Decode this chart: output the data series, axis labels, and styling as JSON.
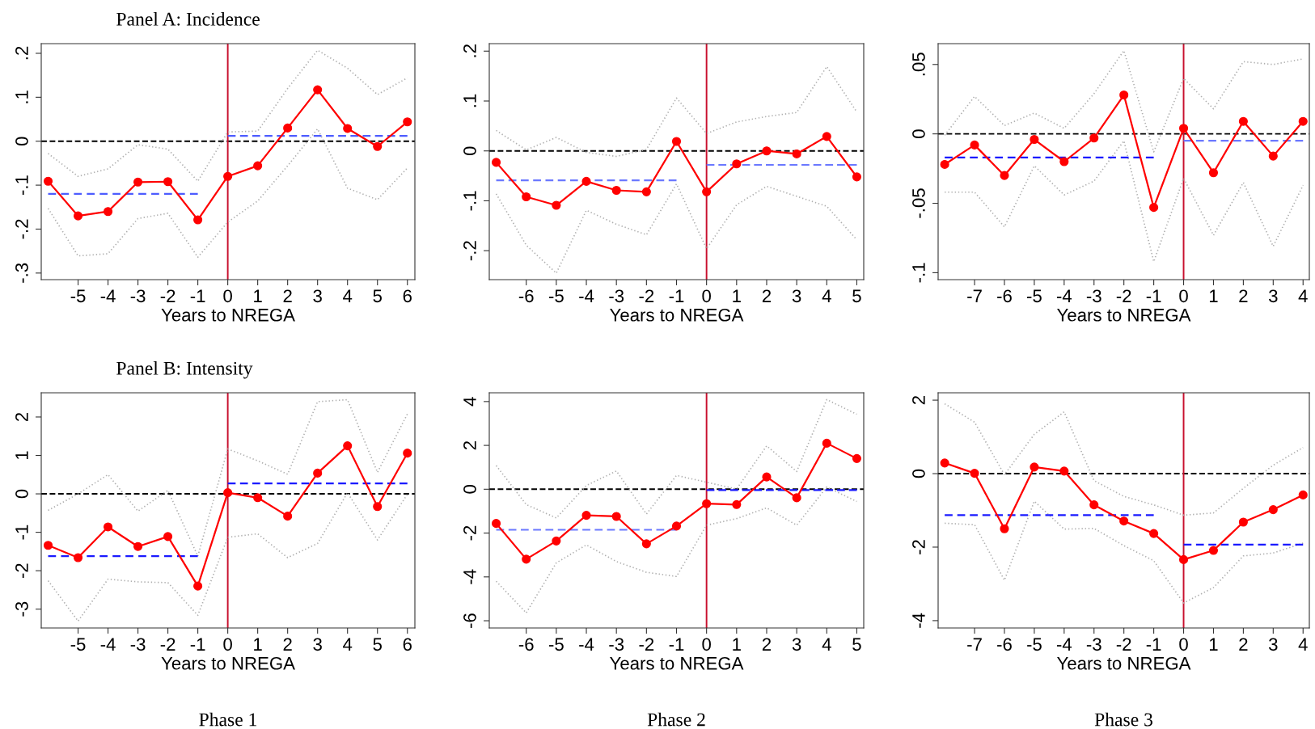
{
  "chart_data": [
    {
      "type": "line",
      "title": "Panel A: Incidence",
      "xlabel": "Years to NREGA",
      "x": [
        -6,
        -5,
        -4,
        -3,
        -2,
        -1,
        0,
        1,
        2,
        3,
        4,
        5,
        6
      ],
      "xlim": [
        -6.23,
        6.25
      ],
      "xticks": [
        -5,
        -4,
        -3,
        -2,
        -1,
        0,
        1,
        2,
        3,
        4,
        5,
        6
      ],
      "ylim": [
        -0.315,
        0.222
      ],
      "yticks": [
        {
          "value": -0.3,
          "label": "-.3"
        },
        {
          "value": -0.2,
          "label": "-.2"
        },
        {
          "value": -0.1,
          "label": "-.1"
        },
        {
          "value": 0,
          "label": "0"
        },
        {
          "value": 0.1,
          "label": ".1"
        },
        {
          "value": 0.2,
          "label": ".2"
        }
      ],
      "grid": false,
      "series": [
        {
          "color": "#b0b0b0",
          "line_style": "dotted",
          "marker": "none",
          "values": [
            -0.028,
            -0.08,
            -0.063,
            -0.008,
            -0.018,
            -0.091,
            0.021,
            0.023,
            0.12,
            0.207,
            0.166,
            0.106,
            0.144
          ]
        },
        {
          "color": "#b0b0b0",
          "line_style": "dotted",
          "marker": "none",
          "values": [
            -0.153,
            -0.261,
            -0.256,
            -0.176,
            -0.164,
            -0.264,
            -0.184,
            -0.136,
            -0.056,
            0.028,
            -0.107,
            -0.133,
            -0.061
          ]
        },
        {
          "color": "#4d5cff",
          "line_style": "dashed",
          "marker": "none",
          "x": [
            -6,
            -1
          ],
          "values": [
            -0.12,
            -0.12
          ]
        },
        {
          "color": "#4d5cff",
          "line_style": "dashed",
          "marker": "none",
          "x": [
            0,
            6
          ],
          "values": [
            0.012,
            0.012
          ]
        },
        {
          "color": "#ff0000",
          "line_style": "solid",
          "marker": "circle",
          "values": [
            -0.091,
            -0.17,
            -0.16,
            -0.093,
            -0.092,
            -0.179,
            -0.08,
            -0.056,
            0.03,
            0.117,
            0.029,
            -0.012,
            0.044
          ]
        }
      ],
      "ref_lines": [
        {
          "axis": "y",
          "value": 0,
          "color": "#000000",
          "line_style": "dashed"
        },
        {
          "axis": "x",
          "value": 0,
          "color": "#c8102e",
          "line_style": "solid"
        }
      ]
    },
    {
      "type": "line",
      "xlabel": "Years to NREGA",
      "x": [
        -7,
        -6,
        -5,
        -4,
        -3,
        -2,
        -1,
        0,
        1,
        2,
        3,
        4,
        5
      ],
      "xlim": [
        -7.23,
        5.23
      ],
      "xticks": [
        -6,
        -5,
        -4,
        -3,
        -2,
        -1,
        0,
        1,
        2,
        3,
        4,
        5
      ],
      "ylim": [
        -0.258,
        0.215
      ],
      "yticks": [
        {
          "value": -0.2,
          "label": "-.2"
        },
        {
          "value": -0.1,
          "label": "-.1"
        },
        {
          "value": 0,
          "label": "0"
        },
        {
          "value": 0.1,
          "label": ".1"
        },
        {
          "value": 0.2,
          "label": ".2"
        }
      ],
      "grid": false,
      "series": [
        {
          "color": "#b0b0b0",
          "line_style": "dotted",
          "marker": "none",
          "values": [
            0.041,
            0.002,
            0.027,
            -0.003,
            -0.011,
            0.003,
            0.106,
            0.035,
            0.058,
            0.069,
            0.077,
            0.169,
            0.078
          ]
        },
        {
          "color": "#b0b0b0",
          "line_style": "dotted",
          "marker": "none",
          "values": [
            -0.086,
            -0.189,
            -0.245,
            -0.119,
            -0.147,
            -0.168,
            -0.066,
            -0.196,
            -0.108,
            -0.071,
            -0.091,
            -0.111,
            -0.178
          ]
        },
        {
          "color": "#6b78ff",
          "line_style": "dashed",
          "marker": "none",
          "x": [
            -7,
            -1
          ],
          "values": [
            -0.059,
            -0.059
          ]
        },
        {
          "color": "#6b78ff",
          "line_style": "dashed",
          "marker": "none",
          "x": [
            0,
            5
          ],
          "values": [
            -0.028,
            -0.028
          ]
        },
        {
          "color": "#ff0000",
          "line_style": "solid",
          "marker": "circle",
          "values": [
            -0.023,
            -0.092,
            -0.109,
            -0.061,
            -0.079,
            -0.082,
            0.019,
            -0.082,
            -0.026,
            0.0,
            -0.006,
            0.029,
            -0.052
          ]
        }
      ],
      "ref_lines": [
        {
          "axis": "y",
          "value": 0,
          "color": "#000000",
          "line_style": "dashed"
        },
        {
          "axis": "x",
          "value": 0,
          "color": "#c8102e",
          "line_style": "solid"
        }
      ]
    },
    {
      "type": "line",
      "xlabel": "Years to NREGA",
      "x": [
        -8,
        -7,
        -6,
        -5,
        -4,
        -3,
        -2,
        -1,
        0,
        1,
        2,
        3,
        4
      ],
      "xlim": [
        -8.22,
        4.21
      ],
      "xticks": [
        -7,
        -6,
        -5,
        -4,
        -3,
        -2,
        -1,
        0,
        1,
        2,
        3,
        4
      ],
      "ylim": [
        -0.105,
        0.065
      ],
      "yticks": [
        {
          "value": -0.1,
          "label": "-.1"
        },
        {
          "value": -0.05,
          "label": "-.05"
        },
        {
          "value": 0,
          "label": "0"
        },
        {
          "value": 0.05,
          "label": ".05"
        }
      ],
      "grid": false,
      "series": [
        {
          "color": "#b0b0b0",
          "line_style": "dotted",
          "marker": "none",
          "values": [
            -0.001,
            0.027,
            0.006,
            0.015,
            0.004,
            0.029,
            0.06,
            -0.013,
            0.04,
            0.018,
            0.052,
            0.05,
            0.054
          ]
        },
        {
          "color": "#b0b0b0",
          "line_style": "dotted",
          "marker": "none",
          "values": [
            -0.042,
            -0.042,
            -0.067,
            -0.023,
            -0.044,
            -0.034,
            -0.005,
            -0.092,
            -0.032,
            -0.073,
            -0.035,
            -0.081,
            -0.037
          ]
        },
        {
          "color": "#1a1aff",
          "line_style": "dashed",
          "marker": "none",
          "x": [
            -8,
            -1
          ],
          "values": [
            -0.017,
            -0.017
          ]
        },
        {
          "color": "#6b78ff",
          "line_style": "dashed",
          "marker": "none",
          "x": [
            0,
            4
          ],
          "values": [
            -0.005,
            -0.005
          ]
        },
        {
          "color": "#ff0000",
          "line_style": "solid",
          "marker": "circle",
          "values": [
            -0.022,
            -0.008,
            -0.03,
            -0.004,
            -0.02,
            -0.003,
            0.028,
            -0.053,
            0.004,
            -0.028,
            0.009,
            -0.016,
            0.009
          ]
        }
      ],
      "ref_lines": [
        {
          "axis": "y",
          "value": 0,
          "color": "#000000",
          "line_style": "dashed"
        },
        {
          "axis": "x",
          "value": 0,
          "color": "#c8102e",
          "line_style": "solid"
        }
      ]
    },
    {
      "type": "line",
      "title": "Panel B: Intensity",
      "xlabel": "Years to NREGA",
      "annotations": [
        "Phase 1"
      ],
      "x": [
        -6,
        -5,
        -4,
        -3,
        -2,
        -1,
        0,
        1,
        2,
        3,
        4,
        5,
        6
      ],
      "xlim": [
        -6.23,
        6.25
      ],
      "xticks": [
        -5,
        -4,
        -3,
        -2,
        -1,
        0,
        1,
        2,
        3,
        4,
        5,
        6
      ],
      "ylim": [
        -3.49,
        2.63
      ],
      "yticks": [
        -3,
        -2,
        -1,
        0,
        1,
        2
      ],
      "grid": false,
      "series": [
        {
          "color": "#b0b0b0",
          "line_style": "dotted",
          "marker": "none",
          "values": [
            -0.43,
            0.0,
            0.5,
            -0.45,
            0.09,
            -1.62,
            1.17,
            0.86,
            0.51,
            2.4,
            2.45,
            0.56,
            2.08
          ]
        },
        {
          "color": "#b0b0b0",
          "line_style": "dotted",
          "marker": "none",
          "values": [
            -2.26,
            -3.31,
            -2.22,
            -2.29,
            -2.31,
            -3.16,
            -1.13,
            -1.04,
            -1.66,
            -1.29,
            0.03,
            -1.2,
            -0.01
          ]
        },
        {
          "color": "#1a1aff",
          "line_style": "dashed",
          "marker": "none",
          "x": [
            -6,
            -1
          ],
          "values": [
            -1.62,
            -1.62
          ]
        },
        {
          "color": "#1a1aff",
          "line_style": "dashed",
          "marker": "none",
          "x": [
            0,
            6
          ],
          "values": [
            0.27,
            0.27
          ]
        },
        {
          "color": "#ff0000",
          "line_style": "solid",
          "marker": "circle",
          "values": [
            -1.34,
            -1.66,
            -0.86,
            -1.37,
            -1.11,
            -2.4,
            0.03,
            -0.1,
            -0.58,
            0.54,
            1.25,
            -0.33,
            1.06
          ]
        }
      ],
      "ref_lines": [
        {
          "axis": "y",
          "value": 0,
          "color": "#000000",
          "line_style": "dashed"
        },
        {
          "axis": "x",
          "value": 0,
          "color": "#c8102e",
          "line_style": "solid"
        }
      ]
    },
    {
      "type": "line",
      "xlabel": "Years to NREGA",
      "annotations": [
        "Phase 2"
      ],
      "x": [
        -7,
        -6,
        -5,
        -4,
        -3,
        -2,
        -1,
        0,
        1,
        2,
        3,
        4,
        5
      ],
      "xlim": [
        -7.23,
        5.23
      ],
      "xticks": [
        -6,
        -5,
        -4,
        -3,
        -2,
        -1,
        0,
        1,
        2,
        3,
        4,
        5
      ],
      "ylim": [
        -6.33,
        4.4
      ],
      "yticks": [
        -6,
        -4,
        -2,
        0,
        2,
        4
      ],
      "grid": false,
      "series": [
        {
          "color": "#b0b0b0",
          "line_style": "dotted",
          "marker": "none",
          "values": [
            1.08,
            -0.7,
            -1.31,
            0.17,
            0.83,
            -1.13,
            0.63,
            0.32,
            0.01,
            1.98,
            0.81,
            4.09,
            3.42
          ]
        },
        {
          "color": "#b0b0b0",
          "line_style": "dotted",
          "marker": "none",
          "values": [
            -4.2,
            -5.64,
            -3.36,
            -2.54,
            -3.3,
            -3.79,
            -3.98,
            -1.64,
            -1.34,
            -0.85,
            -1.64,
            0.1,
            -0.56
          ]
        },
        {
          "color": "#6b78ff",
          "line_style": "dashed",
          "marker": "none",
          "x": [
            -7,
            -1
          ],
          "values": [
            -1.85,
            -1.85
          ]
        },
        {
          "color": "#1a1aff",
          "line_style": "dashed",
          "marker": "none",
          "x": [
            0,
            5
          ],
          "values": [
            -0.04,
            -0.04
          ]
        },
        {
          "color": "#ff0000",
          "line_style": "solid",
          "marker": "circle",
          "values": [
            -1.56,
            -3.19,
            -2.36,
            -1.19,
            -1.24,
            -2.49,
            -1.68,
            -0.66,
            -0.7,
            0.56,
            -0.39,
            2.1,
            1.4
          ]
        }
      ],
      "ref_lines": [
        {
          "axis": "y",
          "value": 0,
          "color": "#000000",
          "line_style": "dashed"
        },
        {
          "axis": "x",
          "value": 0,
          "color": "#c8102e",
          "line_style": "solid"
        }
      ]
    },
    {
      "type": "line",
      "xlabel": "Years to NREGA",
      "annotations": [
        "Phase 3"
      ],
      "x": [
        -8,
        -7,
        -6,
        -5,
        -4,
        -3,
        -2,
        -1,
        0,
        1,
        2,
        3,
        4
      ],
      "xlim": [
        -8.22,
        4.21
      ],
      "xticks": [
        -7,
        -6,
        -5,
        -4,
        -3,
        -2,
        -1,
        0,
        1,
        2,
        3,
        4
      ],
      "ylim": [
        -4.2,
        2.2
      ],
      "yticks": [
        -4,
        -2,
        0,
        2
      ],
      "grid": false,
      "series": [
        {
          "color": "#b0b0b0",
          "line_style": "dotted",
          "marker": "none",
          "values": [
            1.9,
            1.4,
            -0.03,
            1.07,
            1.68,
            -0.19,
            -0.62,
            -0.85,
            -1.13,
            -1.07,
            -0.4,
            0.23,
            0.71
          ]
        },
        {
          "color": "#b0b0b0",
          "line_style": "dotted",
          "marker": "none",
          "values": [
            -1.35,
            -1.39,
            -2.9,
            -0.75,
            -1.51,
            -1.49,
            -1.96,
            -2.37,
            -3.52,
            -3.1,
            -2.24,
            -2.16,
            -1.89
          ]
        },
        {
          "color": "#1a1aff",
          "line_style": "dashed",
          "marker": "none",
          "x": [
            -8,
            -1
          ],
          "values": [
            -1.13,
            -1.13
          ]
        },
        {
          "color": "#1a1aff",
          "line_style": "dashed",
          "marker": "none",
          "x": [
            0,
            4
          ],
          "values": [
            -1.93,
            -1.93
          ]
        },
        {
          "color": "#ff0000",
          "line_style": "solid",
          "marker": "circle",
          "values": [
            0.29,
            0.01,
            -1.5,
            0.18,
            0.07,
            -0.85,
            -1.29,
            -1.63,
            -2.34,
            -2.09,
            -1.32,
            -0.98,
            -0.58
          ]
        }
      ],
      "ref_lines": [
        {
          "axis": "y",
          "value": 0,
          "color": "#000000",
          "line_style": "dashed"
        },
        {
          "axis": "x",
          "value": 0,
          "color": "#c8102e",
          "line_style": "solid"
        }
      ]
    }
  ]
}
